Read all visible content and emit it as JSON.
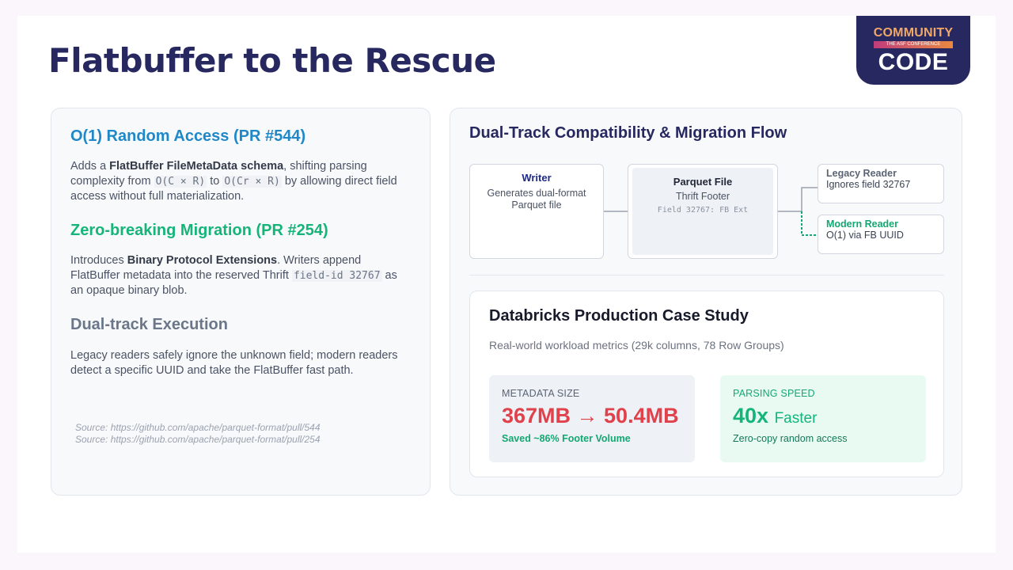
{
  "title": "Flatbuffer to the Rescue",
  "logo": {
    "top": "COMMUNITY",
    "band": "THE ASF CONFERENCE",
    "bottom": "CODE"
  },
  "left": {
    "s1": {
      "heading": "O(1) Random Access (PR #544)",
      "p_pre": "Adds a ",
      "p_bold": "FlatBuffer FileMetaData schema",
      "p_mid": ", shifting parsing complexity from ",
      "code1": "O(C × R)",
      "p_to": " to ",
      "code2": "O(Cr × R)",
      "p_post": " by allowing direct field access without full materialization."
    },
    "s2": {
      "heading": "Zero-breaking Migration (PR #254)",
      "p_pre": "Introduces ",
      "p_bold": "Binary Protocol Extensions",
      "p_mid": ". Writers append FlatBuffer metadata into the reserved Thrift ",
      "code": "field-id 32767",
      "p_post": " as an opaque binary blob."
    },
    "s3": {
      "heading": "Dual-track Execution",
      "p": "Legacy readers safely ignore the unknown field; modern readers detect a specific UUID and take the FlatBuffer fast path."
    },
    "sources": [
      "Source: https://github.com/apache/parquet-format/pull/544",
      "Source: https://github.com/apache/parquet-format/pull/254"
    ]
  },
  "flow": {
    "title": "Dual-Track Compatibility & Migration Flow",
    "writer": {
      "title": "Writer",
      "text": "Generates dual-format Parquet file"
    },
    "file": {
      "title": "Parquet File",
      "text": "Thrift Footer",
      "code": "Field 32767: FB Ext"
    },
    "legacy": {
      "title": "Legacy Reader",
      "text": "Ignores field 32767"
    },
    "modern": {
      "title": "Modern Reader",
      "text": "O(1) via FB UUID"
    }
  },
  "case": {
    "title": "Databricks Production Case Study",
    "subtitle": "Real-world workload metrics (29k columns, 78 Row Groups)",
    "metric1": {
      "label": "METADATA SIZE",
      "value": "367MB → 50.4MB",
      "note": "Saved ~86% Footer Volume"
    },
    "metric2": {
      "label": "PARSING SPEED",
      "value": "40x",
      "suffix": "Faster",
      "note": "Zero-copy random access"
    }
  },
  "colors": {
    "navy": "#27285f",
    "blue": "#1e88c8",
    "green": "#15b57a",
    "gray": "#6b7789",
    "red": "#e0414b",
    "modern_green": "#13a871"
  }
}
